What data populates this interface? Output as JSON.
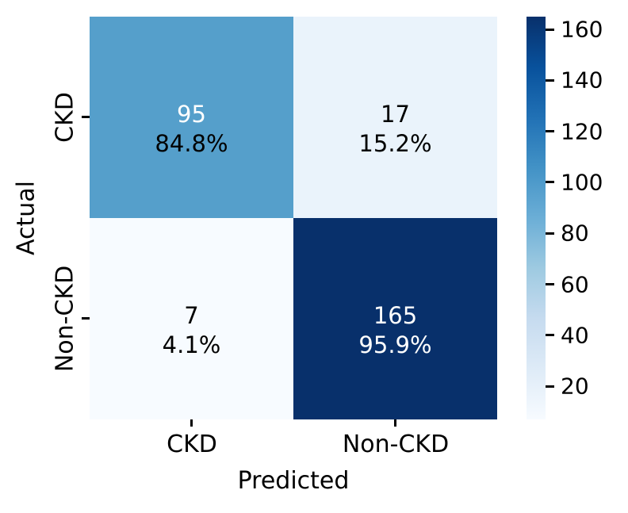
{
  "chart_data": {
    "type": "heatmap",
    "title": "",
    "xlabel": "Predicted",
    "ylabel": "Actual",
    "x_categories": [
      "CKD",
      "Non-CKD"
    ],
    "y_categories": [
      "CKD",
      "Non-CKD"
    ],
    "values_matrix": [
      [
        95,
        17
      ],
      [
        7,
        165
      ]
    ],
    "colormap": "Blues",
    "grid": false,
    "cells": [
      {
        "actual": "CKD",
        "predicted": "CKD",
        "count": "95",
        "percent": "84.8%",
        "value": 95,
        "bg": "#559fcb",
        "count_color": "#ffffff",
        "percent_color": "#000000"
      },
      {
        "actual": "CKD",
        "predicted": "Non-CKD",
        "count": "17",
        "percent": "15.2%",
        "value": 17,
        "bg": "#eaf3fb",
        "count_color": "#000000",
        "percent_color": "#000000"
      },
      {
        "actual": "Non-CKD",
        "predicted": "CKD",
        "count": "7",
        "percent": "4.1%",
        "value": 7,
        "bg": "#f7fbff",
        "count_color": "#000000",
        "percent_color": "#000000"
      },
      {
        "actual": "Non-CKD",
        "predicted": "Non-CKD",
        "count": "165",
        "percent": "95.9%",
        "value": 165,
        "bg": "#08306b",
        "count_color": "#ffffff",
        "percent_color": "#ffffff"
      }
    ],
    "colorbar": {
      "position": "right",
      "vmin": 7,
      "vmax": 165,
      "tick_values": [
        160,
        140,
        120,
        100,
        80,
        60,
        40,
        20
      ],
      "tick_labels": [
        "160",
        "140",
        "120",
        "100",
        "80",
        "60",
        "40",
        "20"
      ],
      "gradient_stops": [
        "#f7fbff",
        "#deebf7",
        "#c6dbef",
        "#9ecae1",
        "#6baed6",
        "#4292c6",
        "#2171b5",
        "#08519c",
        "#08306b"
      ]
    }
  }
}
